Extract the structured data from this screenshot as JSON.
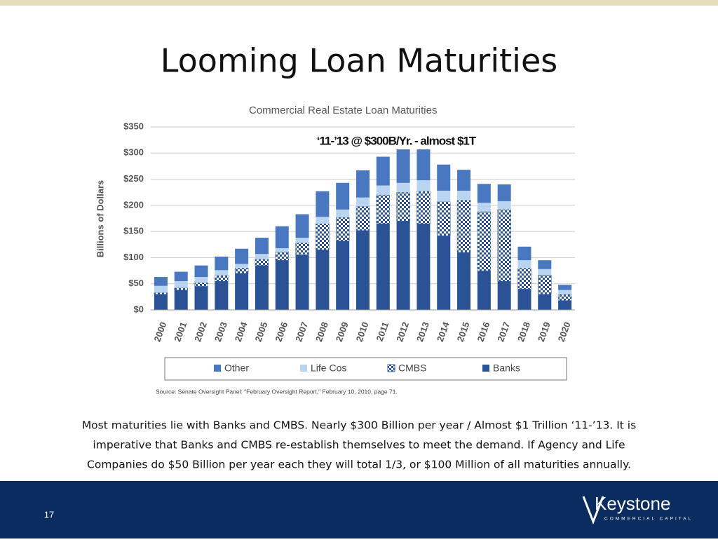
{
  "title": "Looming Loan Maturities",
  "chart_data": {
    "type": "stacked-bar",
    "title": "Commercial Real Estate Loan Maturities",
    "annotation": "‘11-’13 @ $300B/Yr. - almost $1T",
    "y_label": "Billions of Dollars",
    "source": "Source: Senate Oversight Panel: \"February Oversight Report,\" February 10, 2010, page 71.",
    "categories": [
      "2000",
      "2001",
      "2002",
      "2003",
      "2004",
      "2005",
      "2006",
      "2007",
      "2008",
      "2009",
      "2010",
      "2011",
      "2012",
      "2013",
      "2014",
      "2015",
      "2016",
      "2017",
      "2018",
      "2019",
      "2020"
    ],
    "series": [
      {
        "name": "Banks",
        "color": "#2b5294",
        "values": [
          30,
          38,
          45,
          55,
          70,
          85,
          95,
          105,
          115,
          132,
          152,
          165,
          170,
          165,
          142,
          110,
          75,
          55,
          40,
          30,
          18
        ]
      },
      {
        "name": "CMBS",
        "color": "#3a66ae",
        "pattern": "checker",
        "values": [
          3,
          4,
          7,
          11,
          10,
          12,
          16,
          23,
          50,
          45,
          46,
          55,
          55,
          62,
          65,
          100,
          113,
          137,
          40,
          37,
          12
        ]
      },
      {
        "name": "Life Cos",
        "color": "#b8d4f0",
        "values": [
          13,
          13,
          11,
          10,
          8,
          10,
          7,
          10,
          13,
          15,
          17,
          18,
          18,
          21,
          21,
          18,
          17,
          16,
          15,
          11,
          8
        ]
      },
      {
        "name": "Other",
        "color": "#4a78c0",
        "values": [
          17,
          18,
          22,
          26,
          29,
          31,
          42,
          45,
          49,
          51,
          52,
          55,
          64,
          59,
          50,
          40,
          36,
          32,
          26,
          17,
          10
        ]
      }
    ],
    "ylim": [
      0,
      350
    ],
    "yticks": [
      {
        "value": 0,
        "label": "$0"
      },
      {
        "value": 50,
        "label": "$50"
      },
      {
        "value": 100,
        "label": "$100"
      },
      {
        "value": 150,
        "label": "$150"
      },
      {
        "value": 200,
        "label": "$200"
      },
      {
        "value": 250,
        "label": "$250"
      },
      {
        "value": 300,
        "label": "$300"
      },
      {
        "value": 350,
        "label": "$350"
      }
    ],
    "grid": true
  },
  "caption_lines": [
    "Most maturities lie with Banks and CMBS.  Nearly $300 Billion per year / Almost $1 Trillion ‘11-’13.  It is",
    "imperative that Banks and CMBS re-establish themselves to meet the demand.  If Agency and Life",
    "Companies do $50 Billion per year each they will total 1/3, or $100 Million of all maturities annually."
  ],
  "page_number": "17",
  "logo": {
    "name": "Keystone",
    "tagline": "COMMERCIAL CAPITAL"
  }
}
